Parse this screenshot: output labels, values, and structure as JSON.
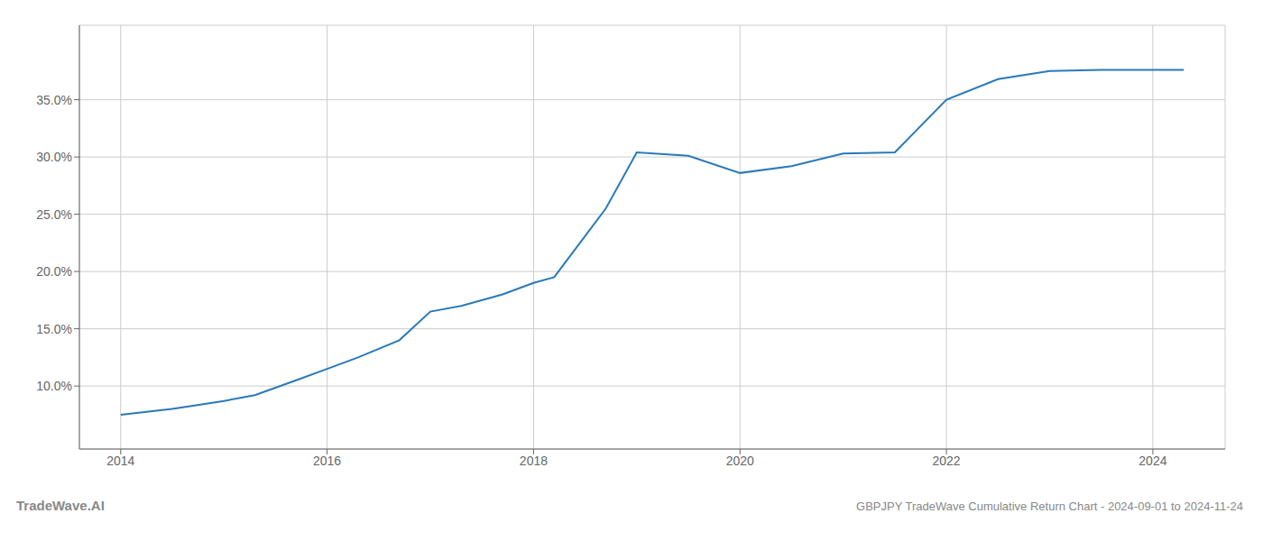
{
  "chart_data": {
    "type": "line",
    "title": "GBPJPY TradeWave Cumulative Return Chart - 2024-09-01 to 2024-11-24",
    "annotations": [
      "TradeWave.AI"
    ],
    "x": [
      2014.0,
      2014.5,
      2015.0,
      2015.3,
      2015.7,
      2016.0,
      2016.3,
      2016.7,
      2017.0,
      2017.3,
      2017.7,
      2018.0,
      2018.2,
      2018.7,
      2019.0,
      2019.5,
      2020.0,
      2020.5,
      2021.0,
      2021.5,
      2022.0,
      2022.5,
      2023.0,
      2023.5,
      2024.0,
      2024.3
    ],
    "values": [
      7.5,
      8.0,
      8.7,
      9.2,
      10.5,
      11.5,
      12.5,
      14.0,
      16.5,
      17.0,
      18.0,
      19.0,
      19.5,
      25.5,
      30.4,
      30.1,
      28.6,
      29.2,
      30.3,
      30.4,
      35.0,
      36.8,
      37.5,
      37.6,
      37.6,
      37.6
    ],
    "color": "#2979b8",
    "xlim": [
      2013.6,
      2024.7
    ],
    "ylim": [
      4.5,
      41.5
    ],
    "xticks": [
      2014,
      2016,
      2018,
      2020,
      2022,
      2024
    ],
    "yticks": [
      {
        "value": 10.0,
        "label": "10.0%"
      },
      {
        "value": 15.0,
        "label": "15.0%"
      },
      {
        "value": 20.0,
        "label": "20.0%"
      },
      {
        "value": 25.0,
        "label": "25.0%"
      },
      {
        "value": 30.0,
        "label": "30.0%"
      },
      {
        "value": 35.0,
        "label": "35.0%"
      }
    ],
    "grid": true
  }
}
